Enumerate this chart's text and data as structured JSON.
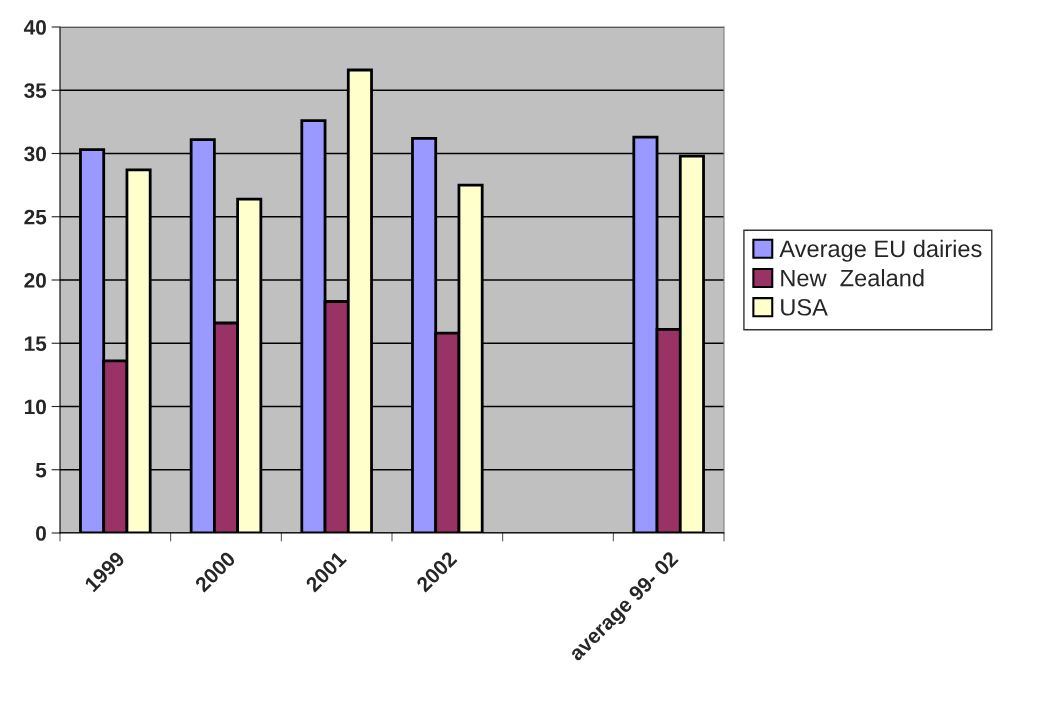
{
  "chart_data": {
    "type": "bar",
    "categories": [
      "1999",
      "2000",
      "2001",
      "2002",
      null,
      "average 99- 02"
    ],
    "series": [
      {
        "name": "Average EU dairies",
        "color": "#9999ff",
        "values": [
          30.3,
          31.1,
          32.6,
          31.2,
          null,
          31.3
        ]
      },
      {
        "name": "New  Zealand",
        "color": "#993366",
        "values": [
          13.6,
          16.6,
          18.3,
          15.8,
          null,
          16.1
        ]
      },
      {
        "name": "USA",
        "color": "#ffffcc",
        "values": [
          28.7,
          26.4,
          36.6,
          27.5,
          null,
          29.8
        ]
      }
    ],
    "ylim": [
      0,
      40
    ],
    "yticks": [
      0,
      5,
      10,
      15,
      20,
      25,
      30,
      35,
      40
    ],
    "grid": "y",
    "legend": "right"
  }
}
